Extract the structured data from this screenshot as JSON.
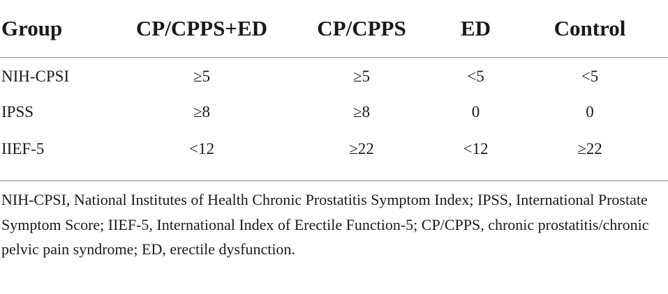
{
  "table": {
    "headers": [
      "Group",
      "CP/CPPS+ED",
      "CP/CPPS",
      "ED",
      "Control"
    ],
    "rows": [
      [
        "NIH-CPSI",
        "≥5",
        "≥5",
        "<5",
        "<5"
      ],
      [
        "IPSS",
        "≥8",
        "≥8",
        "0",
        "0"
      ],
      [
        "IIEF-5",
        "<12",
        "≥22",
        "<12",
        "≥22"
      ]
    ]
  },
  "footnote": "NIH-CPSI, National Institutes of Health Chronic Prostatitis Symptom Index; IPSS, International Prostate Symptom Score; IIEF-5, International Index of Erectile Function-5; CP/CPPS, chronic prostatitis/chronic pelvic pain syndrome; ED, erectile dysfunction."
}
